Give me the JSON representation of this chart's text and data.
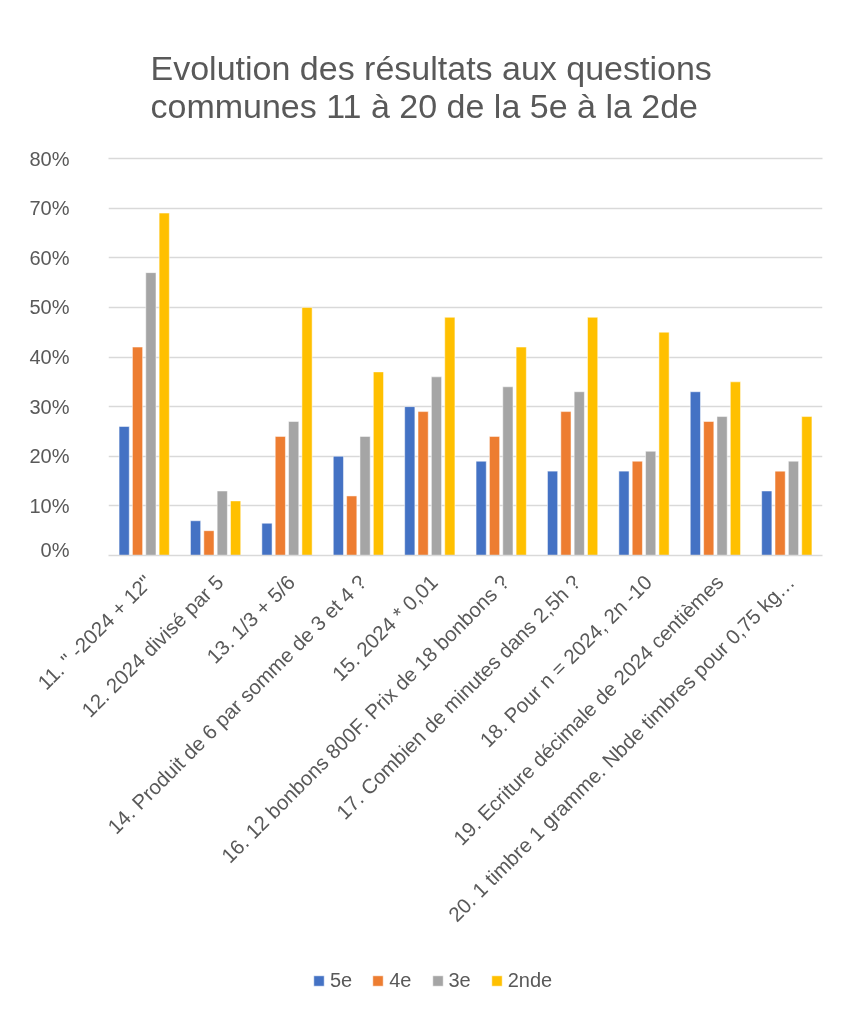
{
  "chart_data": {
    "type": "bar",
    "title": "Evolution des résultats aux questions communes 11 à 20 de la 5e à la 2de",
    "categories": [
      "11. \" -2024 + 12\"",
      "12. 2024 divisé par 5",
      "13. 1/3 + 5/6",
      "14. Produit de 6 par somme de 3 et 4 ?",
      "15. 2024 * 0,01",
      "16. 12 bonbons 800F. Prix de 18 bonbons ?",
      "17. Combien de minutes dans 2,5h ?",
      "18. Pour n = 2024, 2n -10",
      "19. Ecriture décimale de 2024 centièmes",
      "20. 1 timbre 1 gramme. Nbde timbres pour 0,75 kg…"
    ],
    "series": [
      {
        "name": "5e",
        "color": "#4472c4",
        "values": [
          26,
          7,
          6.5,
          20,
          30,
          19,
          17,
          17,
          33,
          13
        ]
      },
      {
        "name": "4e",
        "color": "#ed7d31",
        "values": [
          42,
          5,
          24,
          12,
          29,
          24,
          29,
          19,
          27,
          17
        ]
      },
      {
        "name": "3e",
        "color": "#a5a5a5",
        "values": [
          57,
          13,
          27,
          24,
          36,
          34,
          33,
          21,
          28,
          19
        ]
      },
      {
        "name": "2nde",
        "color": "#ffc000",
        "values": [
          69,
          11,
          50,
          37,
          48,
          42,
          48,
          45,
          35,
          28
        ]
      }
    ],
    "ylim": [
      0,
      80
    ],
    "yticks": [
      {
        "value": 0,
        "label": "0%"
      },
      {
        "value": 10,
        "label": "10%"
      },
      {
        "value": 20,
        "label": "20%"
      },
      {
        "value": 30,
        "label": "30%"
      },
      {
        "value": 40,
        "label": "40%"
      },
      {
        "value": 50,
        "label": "50%"
      },
      {
        "value": 60,
        "label": "60%"
      },
      {
        "value": 70,
        "label": "70%"
      },
      {
        "value": 80,
        "label": "80%"
      }
    ],
    "grid": "y",
    "legend": "bottom"
  }
}
